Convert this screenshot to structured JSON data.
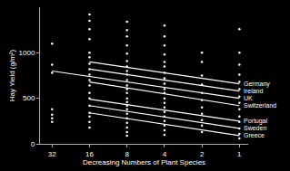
{
  "chart_data": {
    "type": "scatter",
    "x_label": "Decreasing Numbers of Plant Species",
    "y_label": "Hay Yield (g/m²)",
    "log": "x",
    "grid": false,
    "xlim": [
      40,
      0.85
    ],
    "xticks": [
      32,
      16,
      8,
      4,
      2,
      1
    ],
    "ylim": [
      0,
      1500
    ],
    "yticks": [
      0,
      500,
      1000
    ],
    "series": [
      {
        "type": "scatter",
        "marker": "circle",
        "color": "#ffffff",
        "x": [
          32,
          32,
          32,
          32,
          32,
          32,
          32,
          16,
          16,
          16,
          16,
          16,
          16,
          16,
          16,
          16,
          16,
          16,
          16,
          16,
          16,
          16,
          16,
          16,
          16,
          8,
          8,
          8,
          8,
          8,
          8,
          8,
          8,
          8,
          8,
          8,
          8,
          8,
          8,
          8,
          8,
          8,
          8,
          8,
          8,
          8,
          8,
          8,
          4,
          4,
          4,
          4,
          4,
          4,
          4,
          4,
          4,
          4,
          4,
          4,
          4,
          4,
          4,
          4,
          4,
          4,
          4,
          4,
          2,
          2,
          2,
          2,
          2,
          2,
          2,
          2,
          2,
          2,
          2,
          1,
          1,
          1,
          1,
          1,
          1,
          1,
          1,
          1,
          1,
          1,
          1,
          1,
          1
        ],
        "values": [
          1100,
          870,
          780,
          380,
          320,
          280,
          240,
          1420,
          1350,
          1260,
          1150,
          1000,
          950,
          880,
          820,
          760,
          700,
          640,
          560,
          500,
          420,
          340,
          300,
          240,
          180,
          1340,
          1250,
          1180,
          1080,
          990,
          910,
          850,
          800,
          760,
          700,
          640,
          600,
          560,
          500,
          460,
          420,
          380,
          330,
          280,
          230,
          180,
          130,
          90,
          1300,
          1180,
          1080,
          980,
          900,
          850,
          780,
          720,
          660,
          600,
          560,
          500,
          450,
          400,
          350,
          300,
          250,
          200,
          150,
          100,
          1000,
          900,
          750,
          650,
          560,
          480,
          400,
          330,
          260,
          200,
          130,
          1260,
          1000,
          870,
          760,
          680,
          600,
          520,
          450,
          380,
          300,
          240,
          170,
          110,
          60
        ]
      },
      {
        "type": "line",
        "name": "Germany",
        "color": "#ffffff",
        "line_style": "solid",
        "x": [
          16,
          1
        ],
        "values": [
          900,
          660
        ]
      },
      {
        "type": "line",
        "name": "Ireland",
        "color": "#ffffff",
        "line_style": "solid",
        "x": [
          16,
          1
        ],
        "values": [
          820,
          580
        ]
      },
      {
        "type": "line",
        "name": "UK",
        "color": "#ffffff",
        "line_style": "solid",
        "x": [
          32,
          1
        ],
        "values": [
          800,
          500
        ]
      },
      {
        "type": "line",
        "name": "Switzerland",
        "color": "#ffffff",
        "line_style": "solid",
        "x": [
          16,
          1
        ],
        "values": [
          680,
          420
        ]
      },
      {
        "type": "line",
        "name": "Portugal",
        "color": "#ffffff",
        "line_style": "solid",
        "x": [
          16,
          1
        ],
        "values": [
          490,
          250
        ]
      },
      {
        "type": "line",
        "name": "Sweden",
        "color": "#ffffff",
        "line_style": "solid",
        "x": [
          16,
          1
        ],
        "values": [
          420,
          170
        ]
      },
      {
        "type": "line",
        "name": "Greece",
        "color": "#ffffff",
        "line_style": "solid",
        "x": [
          16,
          1
        ],
        "values": [
          340,
          90
        ]
      }
    ]
  }
}
